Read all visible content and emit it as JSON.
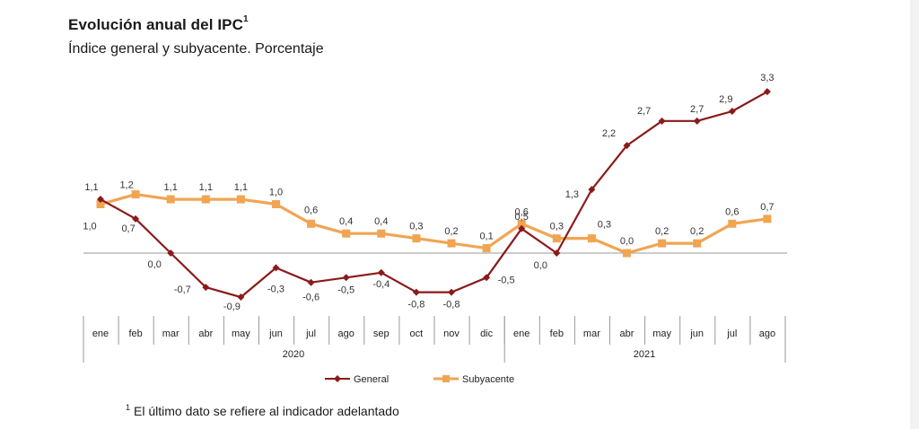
{
  "header": {
    "title": "Evolución anual del IPC",
    "title_sup": "1",
    "subtitle": "Índice general y subyacente. Porcentaje"
  },
  "footnote": {
    "sup": "1",
    "text": "El último dato se refiere al indicador adelantado"
  },
  "chart_data": {
    "type": "line",
    "categories": [
      "ene",
      "feb",
      "mar",
      "abr",
      "may",
      "jun",
      "jul",
      "ago",
      "sep",
      "oct",
      "nov",
      "dic",
      "ene",
      "feb",
      "mar",
      "abr",
      "may",
      "jun",
      "jul",
      "ago"
    ],
    "groups": [
      {
        "label": "2020",
        "start": 0,
        "end": 11
      },
      {
        "label": "2021",
        "start": 12,
        "end": 19
      }
    ],
    "series": [
      {
        "name": "General",
        "color": "#8b1a1a",
        "marker": "diamond",
        "values": [
          1.1,
          0.7,
          0.0,
          -0.7,
          -0.9,
          -0.3,
          -0.6,
          -0.5,
          -0.4,
          -0.8,
          -0.8,
          -0.5,
          0.5,
          0.0,
          1.3,
          2.2,
          2.7,
          2.7,
          2.9,
          3.3
        ],
        "labels": [
          "1,1",
          "0,7",
          "0,0",
          "-0,7",
          "-0,9",
          "-0,3",
          "-0,6",
          "-0,5",
          "-0,4",
          "-0,8",
          "-0,8",
          "-0,5",
          "0,5",
          "0,0",
          "1,3",
          "2,2",
          "2,7",
          "2,7",
          "2,9",
          "3,3"
        ]
      },
      {
        "name": "Subyacente",
        "color": "#f0a552",
        "marker": "square",
        "values": [
          1.0,
          1.2,
          1.1,
          1.1,
          1.1,
          1.0,
          0.6,
          0.4,
          0.4,
          0.3,
          0.2,
          0.1,
          0.6,
          0.3,
          0.3,
          0.0,
          0.2,
          0.2,
          0.6,
          0.7
        ],
        "labels": [
          "1,0",
          "1,2",
          "1,1",
          "1,1",
          "1,1",
          "1,0",
          "0,6",
          "0,4",
          "0,4",
          "0,3",
          "0,2",
          "0,1",
          "0,6",
          "0,3",
          "0,3",
          "0,0",
          "0,2",
          "0,2",
          "0,6",
          "0,7"
        ]
      }
    ],
    "legend_position": "bottom-center",
    "grid": false
  }
}
